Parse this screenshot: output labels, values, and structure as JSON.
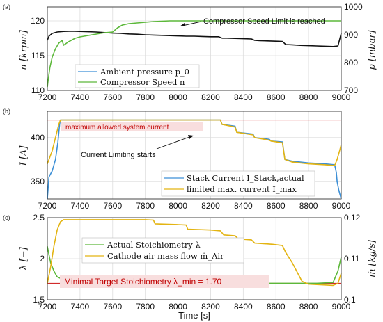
{
  "chart_data": [
    {
      "panel": "(a)",
      "type": "line",
      "xlim": [
        7200,
        9000
      ],
      "x_ticks": [
        7200,
        7400,
        7600,
        7800,
        8000,
        8200,
        8400,
        8600,
        8800,
        9000
      ],
      "ylabel": "n [krpm]",
      "ylim": [
        110,
        122
      ],
      "y_ticks": [
        110,
        115,
        120
      ],
      "ylabel_right": "p [mbar]",
      "ylim_right": [
        700,
        1000
      ],
      "y_ticks_right": [
        700,
        800,
        900,
        1000
      ],
      "grid": true,
      "legend_position": "bottom-left",
      "series": [
        {
          "name": "Ambient pressure p_0",
          "color": "#111111",
          "axis": "right",
          "x": [
            7200,
            7210,
            7230,
            7260,
            7300,
            7350,
            7400,
            7450,
            7500,
            7550,
            7600,
            7650,
            7700,
            7750,
            7800,
            7850,
            7900,
            7950,
            8000,
            8050,
            8100,
            8150,
            8200,
            8250,
            8270,
            8300,
            8350,
            8400,
            8450,
            8470,
            8500,
            8550,
            8600,
            8640,
            8660,
            8700,
            8750,
            8800,
            8850,
            8900,
            8950,
            8980,
            9000
          ],
          "y": [
            880,
            895,
            905,
            910,
            912,
            913,
            912,
            911,
            910,
            908,
            906,
            905,
            903,
            902,
            900,
            899,
            898,
            897,
            896,
            895,
            895,
            894,
            893,
            893,
            888,
            888,
            887,
            886,
            885,
            880,
            879,
            878,
            877,
            876,
            865,
            864,
            862,
            861,
            860,
            859,
            858,
            860,
            905
          ]
        },
        {
          "name": "Compressor Speed n",
          "color": "#5cb83a",
          "axis": "left",
          "x": [
            7200,
            7205,
            7215,
            7230,
            7250,
            7270,
            7290,
            7300,
            7330,
            7370,
            7400,
            7450,
            7500,
            7550,
            7600,
            7630,
            7660,
            7700,
            7750,
            7800,
            7850,
            7900,
            7950,
            8000,
            8100,
            8200,
            8400,
            8600,
            8800,
            9000
          ],
          "y": [
            110.5,
            111.5,
            113.2,
            114.8,
            116.0,
            116.8,
            117.2,
            116.5,
            117.0,
            117.5,
            117.7,
            117.9,
            118.1,
            118.3,
            118.4,
            119.0,
            119.4,
            119.6,
            119.7,
            119.8,
            119.9,
            119.95,
            120.0,
            120.0,
            120.0,
            120.0,
            120.0,
            120.0,
            120.0,
            120.0
          ]
        }
      ],
      "annotations": [
        "Compressor Speed Limit is reached"
      ]
    },
    {
      "panel": "(b)",
      "type": "line",
      "xlim": [
        7200,
        9000
      ],
      "x_ticks": [
        7200,
        7400,
        7600,
        7800,
        8000,
        8200,
        8400,
        8600,
        8800,
        9000
      ],
      "ylabel": "I [A]",
      "ylim": [
        330,
        430
      ],
      "y_ticks": [
        350,
        400
      ],
      "grid": true,
      "legend_position": "bottom-right",
      "reference_line": {
        "label": "maximum allowed system current",
        "value": 420,
        "color": "#d12b2b"
      },
      "series": [
        {
          "name": "Stack Current I_Stack,actual",
          "color": "#3c8fd6",
          "x": [
            7200,
            7210,
            7230,
            7250,
            7265,
            7275,
            7280,
            8000,
            8260,
            8270,
            8350,
            8360,
            8460,
            8470,
            8560,
            8570,
            8640,
            8655,
            8700,
            8800,
            8900,
            8960,
            8970,
            8975,
            8980,
            8985,
            9000
          ],
          "y": [
            330,
            355,
            362,
            375,
            395,
            415,
            420,
            420,
            420,
            415,
            413,
            406,
            404,
            400,
            398,
            396,
            395,
            375,
            373,
            371,
            370,
            369,
            360,
            350,
            345,
            340,
            330
          ]
        },
        {
          "name": "limited max. current I_max",
          "color": "#e3b412",
          "x": [
            7200,
            7230,
            7250,
            7270,
            7280,
            7300,
            8000,
            8260,
            8270,
            8350,
            8360,
            8460,
            8470,
            8560,
            8570,
            8640,
            8655,
            8700,
            8800,
            8900,
            8960,
            8975,
            8990,
            9000
          ],
          "y": [
            370,
            385,
            400,
            415,
            420,
            420,
            420,
            420,
            415,
            412,
            406,
            403,
            400,
            397,
            396,
            394,
            375,
            372,
            370,
            369,
            368,
            375,
            385,
            392
          ]
        }
      ],
      "annotations": [
        "Current Limiting starts"
      ]
    },
    {
      "panel": "(c)",
      "type": "line",
      "xlim": [
        7200,
        9000
      ],
      "x_ticks": [
        7200,
        7400,
        7600,
        7800,
        8000,
        8200,
        8400,
        8600,
        8800,
        9000
      ],
      "xlabel": "Time [s]",
      "ylabel": "λ [−]",
      "ylim": [
        1.5,
        2.5
      ],
      "y_ticks": [
        1.5,
        2,
        2.5
      ],
      "ylabel_right": "ṁ [kg/s]",
      "ylim_right": [
        0.1,
        0.12
      ],
      "y_ticks_right": [
        0.1,
        0.11,
        0.12
      ],
      "grid": true,
      "legend_position": "center",
      "reference_line": {
        "label": "Minimal Target Stoichiometry λ_min = 1.70",
        "value": 1.7,
        "color": "#d12b2b"
      },
      "series": [
        {
          "name": "Actual Stoichiometry λ",
          "color": "#5cb83a",
          "axis": "left",
          "x": [
            7200,
            7210,
            7220,
            7240,
            7260,
            7280,
            7300,
            7400,
            7600,
            7800,
            7850,
            7900,
            8000,
            8050,
            8100,
            8200,
            8400,
            8600,
            8800,
            8850,
            8950,
            8980,
            9000
          ],
          "y": [
            2.15,
            2.05,
            1.95,
            1.85,
            1.78,
            1.76,
            1.75,
            1.75,
            1.74,
            1.73,
            1.72,
            1.715,
            1.71,
            1.71,
            1.7,
            1.7,
            1.7,
            1.7,
            1.7,
            1.7,
            1.71,
            1.85,
            2.02
          ]
        },
        {
          "name": "Cathode air mass flow ṁ_Air",
          "color": "#e3b412",
          "axis": "right",
          "x": [
            7200,
            7220,
            7240,
            7260,
            7280,
            7300,
            7500,
            7800,
            7850,
            7860,
            8000,
            8050,
            8060,
            8200,
            8260,
            8280,
            8350,
            8370,
            8450,
            8470,
            8550,
            8580,
            8640,
            8660,
            8700,
            8760,
            8800,
            8900,
            8950,
            8980,
            9000
          ],
          "y": [
            0.104,
            0.108,
            0.113,
            0.117,
            0.119,
            0.1195,
            0.1195,
            0.1195,
            0.1194,
            0.1185,
            0.1183,
            0.1182,
            0.1172,
            0.117,
            0.1168,
            0.1158,
            0.1156,
            0.1148,
            0.1146,
            0.1138,
            0.1136,
            0.1135,
            0.1132,
            0.1115,
            0.109,
            0.1045,
            0.1038,
            0.1036,
            0.1035,
            0.104,
            0.1065
          ]
        }
      ]
    }
  ]
}
